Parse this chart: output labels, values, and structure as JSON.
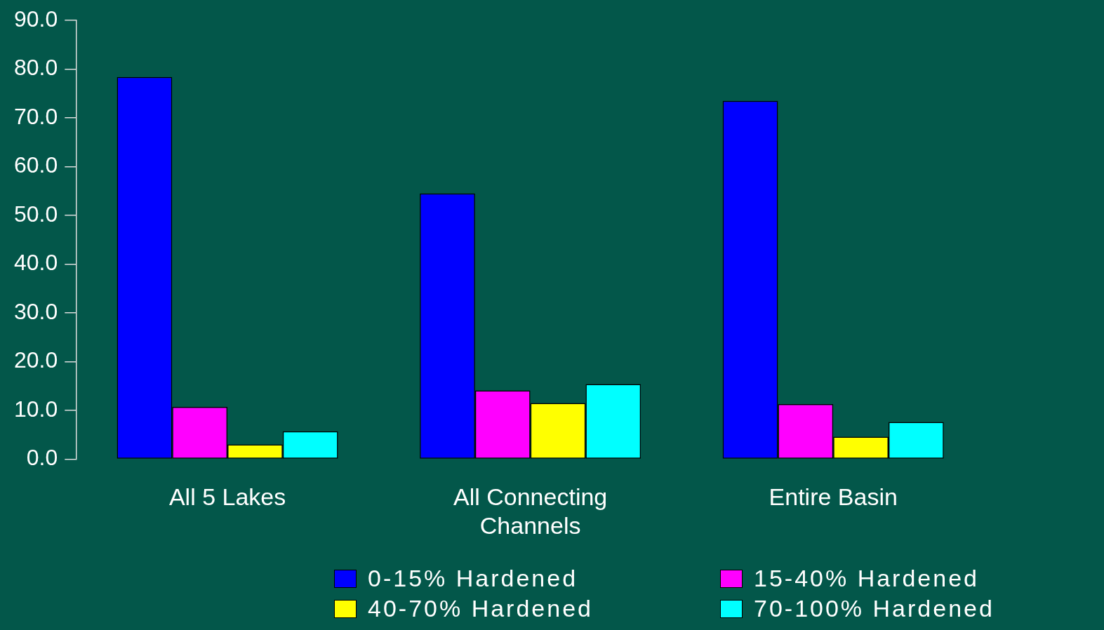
{
  "chart_data": {
    "type": "bar",
    "categories": [
      "All 5 Lakes",
      "All Connecting Channels",
      "Entire Basin"
    ],
    "series": [
      {
        "name": "0-15% Hardened",
        "color": "#0000ff",
        "values": [
          78.4,
          54.5,
          73.5
        ]
      },
      {
        "name": "15-40% Hardened",
        "color": "#ff00ff",
        "values": [
          10.7,
          14.1,
          11.3
        ]
      },
      {
        "name": "40-70% Hardened",
        "color": "#ffff00",
        "values": [
          3.0,
          11.5,
          4.6
        ]
      },
      {
        "name": "70-100% Hardened",
        "color": "#00ffff",
        "values": [
          5.7,
          15.4,
          7.6
        ]
      }
    ],
    "ylim": [
      0,
      90
    ],
    "yticks": [
      {
        "value": 0,
        "label": "0.0"
      },
      {
        "value": 10,
        "label": "10.0"
      },
      {
        "value": 20,
        "label": "20.0"
      },
      {
        "value": 30,
        "label": "30.0"
      },
      {
        "value": 40,
        "label": "40.0"
      },
      {
        "value": 50,
        "label": "50.0"
      },
      {
        "value": 60,
        "label": "60.0"
      },
      {
        "value": 70,
        "label": "70.0"
      },
      {
        "value": 80,
        "label": "80.0"
      },
      {
        "value": 90,
        "label": "90.0"
      }
    ],
    "grid": false,
    "legend": "bottom"
  }
}
